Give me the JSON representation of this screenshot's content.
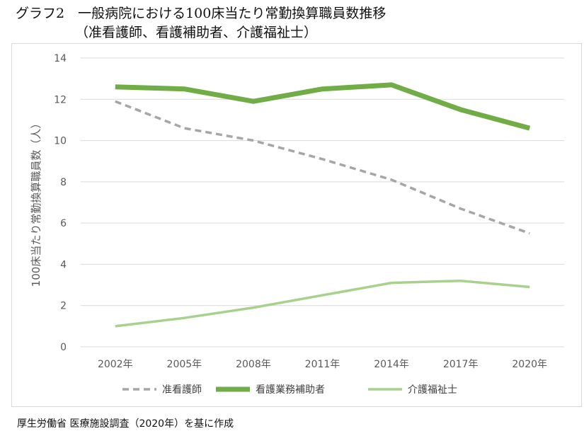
{
  "chart_data": {
    "type": "line",
    "title_line1": "グラフ2　一般病院における100床当たり常勤換算職員数推移",
    "title_line2": "（准看護師、看護補助者、介護福祉士）",
    "xlabel": "",
    "ylabel": "100床当たり常勤換算職員数（人）",
    "ylim": [
      0,
      14
    ],
    "yticks": [
      "0",
      "2",
      "4",
      "6",
      "8",
      "10",
      "12",
      "14"
    ],
    "categories": [
      "2002年",
      "2005年",
      "2008年",
      "2011年",
      "2014年",
      "2017年",
      "2020年"
    ],
    "series": [
      {
        "name": "准看護師",
        "color": "#a6a6a6",
        "style": "dashed",
        "values": [
          11.9,
          10.6,
          10.0,
          9.1,
          8.1,
          6.7,
          5.5
        ]
      },
      {
        "name": "看護業務補助者",
        "color": "#70ad47",
        "style": "thick",
        "values": [
          12.6,
          12.5,
          11.9,
          12.5,
          12.7,
          11.5,
          10.6
        ]
      },
      {
        "name": "介護福祉士",
        "color": "#a9d18e",
        "style": "solid",
        "values": [
          1.0,
          1.4,
          1.9,
          2.5,
          3.1,
          3.2,
          2.9
        ]
      }
    ],
    "grid": true,
    "legend": "bottom-center"
  },
  "source": "厚生労働省 医療施設調査（2020年）を基に作成"
}
